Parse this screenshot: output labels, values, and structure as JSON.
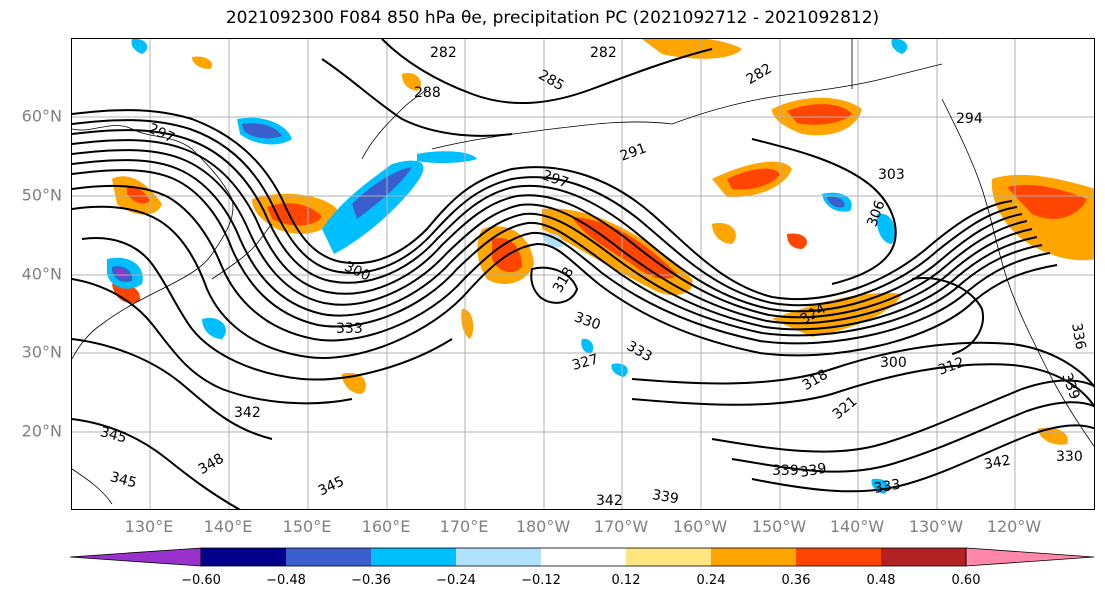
{
  "title": "2021092300 F084 850 hPa θe, precipitation PC (2021092712 - 2021092812)",
  "lat_labels": [
    "60°N",
    "50°N",
    "40°N",
    "30°N",
    "20°N"
  ],
  "lon_labels": [
    "130°E",
    "140°E",
    "150°E",
    "160°E",
    "170°E",
    "180°W",
    "170°W",
    "160°W",
    "150°W",
    "140°W",
    "130°W",
    "120°W"
  ],
  "colorbar": {
    "ticks": [
      "−0.60",
      "−0.48",
      "−0.36",
      "−0.24",
      "−0.12",
      "0.12",
      "0.24",
      "0.36",
      "0.48",
      "0.60"
    ],
    "colors": [
      "#9932cc",
      "#00008b",
      "#3a5fcd",
      "#00bfff",
      "#b0e2ff",
      "#ffffff",
      "#ffe680",
      "#ffa500",
      "#ff4500",
      "#b22222",
      "#ff88aa"
    ]
  },
  "contour_labels": [
    "282",
    "282",
    "282",
    "285",
    "288",
    "297",
    "291",
    "294",
    "297",
    "303",
    "306",
    "300",
    "333",
    "318",
    "330",
    "333",
    "327",
    "324",
    "318",
    "321",
    "300",
    "312",
    "336",
    "339",
    "330",
    "342",
    "345",
    "348",
    "345",
    "345",
    "342",
    "339",
    "333",
    "339",
    "339",
    "342"
  ],
  "colors": {
    "positive": [
      "#ffe680",
      "#ffa500",
      "#ff4500",
      "#b22222"
    ],
    "negative": [
      "#b0e2ff",
      "#00bfff",
      "#3a5fcd",
      "#00008b",
      "#9932cc"
    ],
    "contour": "#000000",
    "grid": "#b0b0b0"
  }
}
